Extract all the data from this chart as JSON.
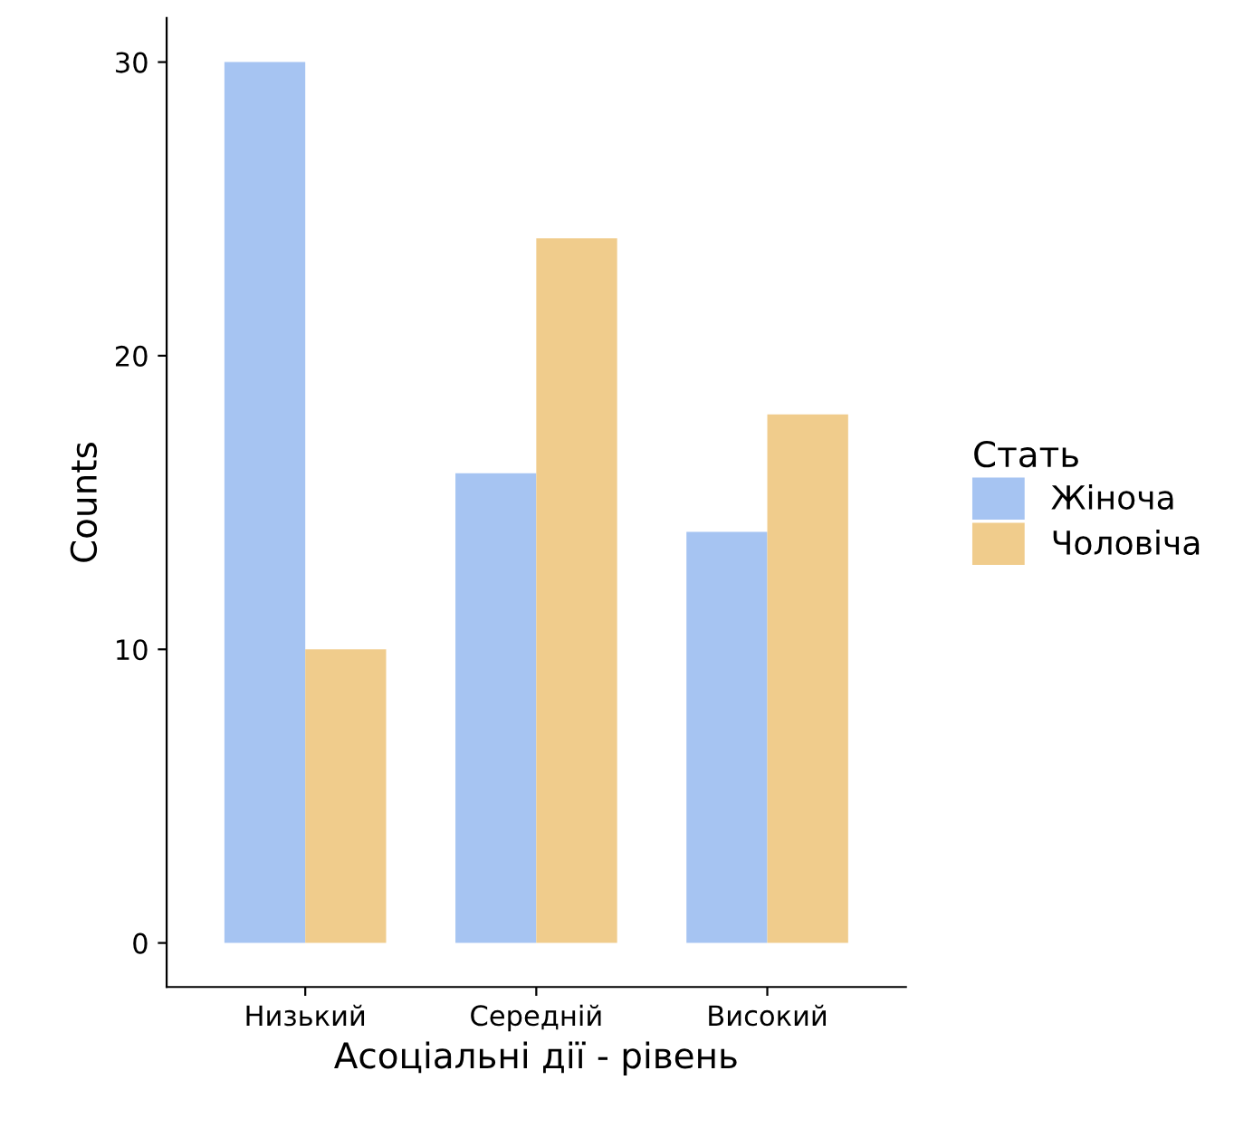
{
  "chart_data": {
    "type": "bar",
    "xlabel": "Асоціальні дії - рівень",
    "ylabel": "Counts",
    "legend_title": "Стать",
    "categories": [
      "Низький",
      "Середній",
      "Високий"
    ],
    "series": [
      {
        "name": "Жіноча",
        "color": "#a6c4f2",
        "values": [
          30,
          16,
          14
        ]
      },
      {
        "name": "Чоловіча",
        "color": "#f0cc8c",
        "values": [
          10,
          24,
          18
        ]
      }
    ],
    "ylim": [
      -1.5,
      31.5
    ],
    "yticks": [
      0,
      10,
      20,
      30
    ],
    "grid": false,
    "legend": "right"
  }
}
